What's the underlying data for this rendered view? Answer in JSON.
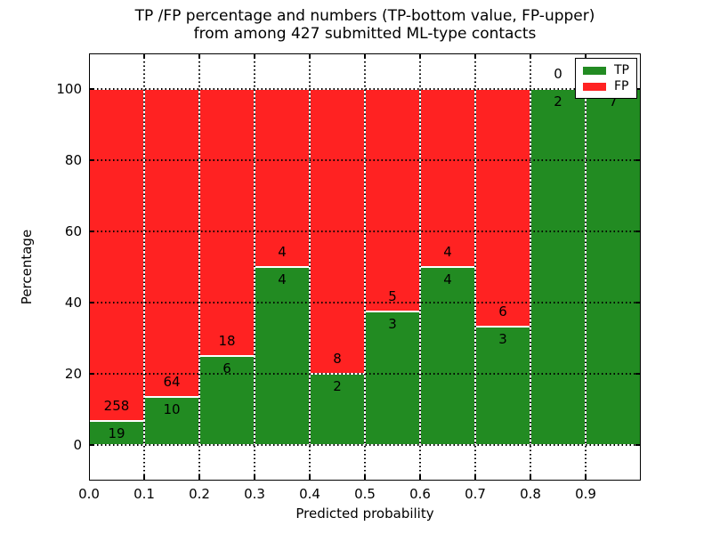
{
  "chart_data": {
    "type": "bar",
    "variant": "stacked-percentage-histogram",
    "title": "TP /FP percentage and numbers (TP-bottom value, FP-upper)\nfrom among 427 submitted ML-type contacts",
    "title_line1": "TP /FP percentage and numbers (TP-bottom value, FP-upper)",
    "title_line2": "from among 427 submitted ML-type contacts",
    "xlabel": "Predicted probability",
    "ylabel": "Percentage",
    "total_contacts": 427,
    "xlim": [
      0.0,
      1.0
    ],
    "ylim": [
      -10,
      110
    ],
    "bin_width": 0.1,
    "xticks": [
      "0.0",
      "0.1",
      "0.2",
      "0.3",
      "0.4",
      "0.5",
      "0.6",
      "0.7",
      "0.8",
      "0.9"
    ],
    "xtick_values": [
      0.0,
      0.1,
      0.2,
      0.3,
      0.4,
      0.5,
      0.6,
      0.7,
      0.8,
      0.9
    ],
    "yticks": [
      "0",
      "20",
      "40",
      "60",
      "80",
      "100"
    ],
    "ytick_values": [
      0,
      20,
      40,
      60,
      80,
      100
    ],
    "grid": {
      "style": "dotted",
      "color": "#000000",
      "drawn_above_bars": true
    },
    "annotation_rule": "Each bar boundary is labeled with raw counts: FP count above the TP/FP boundary, TP count below it",
    "bins": [
      {
        "x_start": 0.0,
        "x_end": 0.1,
        "tp": 19,
        "fp": 258,
        "tp_pct": 6.86
      },
      {
        "x_start": 0.1,
        "x_end": 0.2,
        "tp": 10,
        "fp": 64,
        "tp_pct": 13.51
      },
      {
        "x_start": 0.2,
        "x_end": 0.3,
        "tp": 6,
        "fp": 18,
        "tp_pct": 25.0
      },
      {
        "x_start": 0.3,
        "x_end": 0.4,
        "tp": 4,
        "fp": 4,
        "tp_pct": 50.0
      },
      {
        "x_start": 0.4,
        "x_end": 0.5,
        "tp": 2,
        "fp": 8,
        "tp_pct": 20.0
      },
      {
        "x_start": 0.5,
        "x_end": 0.6,
        "tp": 3,
        "fp": 5,
        "tp_pct": 37.5
      },
      {
        "x_start": 0.6,
        "x_end": 0.7,
        "tp": 4,
        "fp": 4,
        "tp_pct": 50.0
      },
      {
        "x_start": 0.7,
        "x_end": 0.8,
        "tp": 3,
        "fp": 6,
        "tp_pct": 33.33
      },
      {
        "x_start": 0.8,
        "x_end": 0.9,
        "tp": 2,
        "fp": 0,
        "tp_pct": 100.0
      },
      {
        "x_start": 0.9,
        "x_end": 1.0,
        "tp": 7,
        "fp": 0,
        "tp_pct": 100.0,
        "fp_label_hidden_behind_legend": true
      }
    ],
    "legend": {
      "position": "upper-right",
      "entries": [
        {
          "label": "TP",
          "color": "#228B22"
        },
        {
          "label": "FP",
          "color": "#FF2222"
        }
      ]
    },
    "colors": {
      "tp": "#228B22",
      "fp": "#FF2222",
      "bar_edge": "#FFFFFF",
      "background": "#FFFFFF",
      "text": "#000000"
    }
  }
}
